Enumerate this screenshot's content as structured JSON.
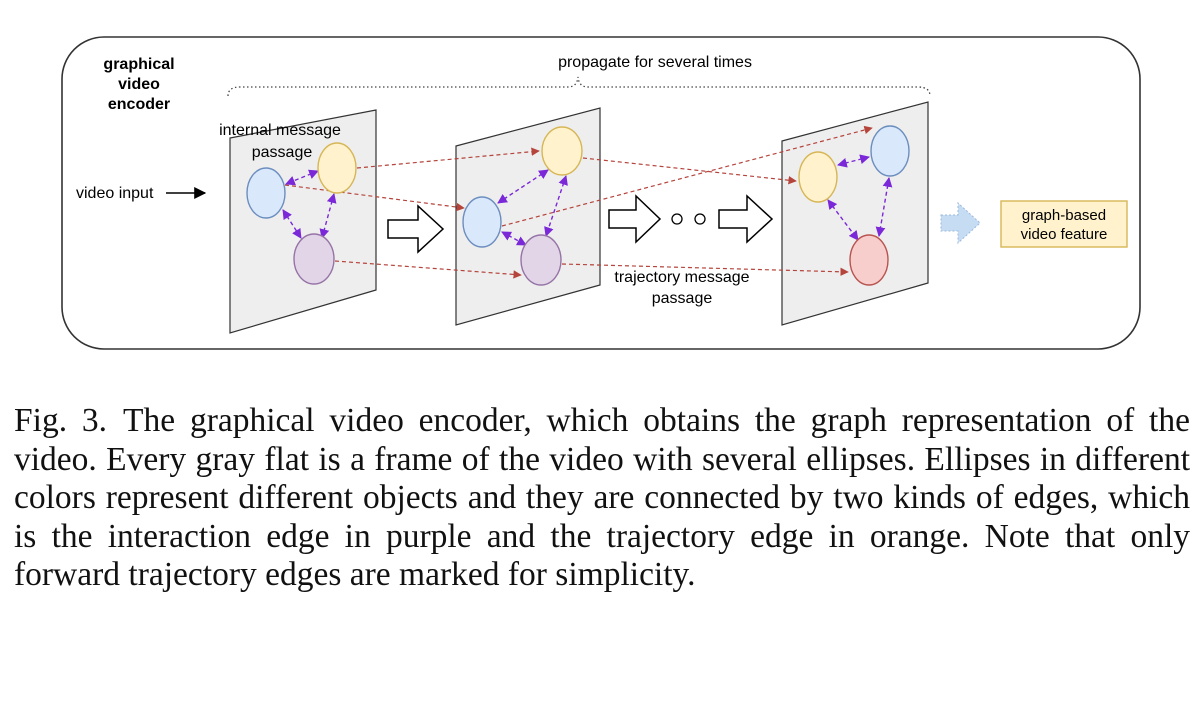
{
  "diagram": {
    "encoder_title": [
      "graphical",
      "video",
      "encoder"
    ],
    "propagate_label": "propagate for several times",
    "internal_label": [
      "internal message",
      "passage"
    ],
    "video_input_label": "video input",
    "trajectory_label": [
      "trajectory message",
      "passage"
    ],
    "output_label": [
      "graph-based",
      "video feature"
    ],
    "colors": {
      "frame_fill": "#eeeeee",
      "blue_node": "#dae8fc",
      "blue_stroke": "#6c8ebf",
      "yellow_node": "#fff2cc",
      "yellow_stroke": "#d6b656",
      "purple_node": "#e1d5e7",
      "purple_stroke": "#9673a6",
      "red_node": "#f8cecc",
      "red_stroke": "#b85450",
      "interaction_edge": "#7a28d8",
      "trajectory_edge": "#b5443c",
      "output_box_fill": "#fff2cc",
      "output_box_stroke": "#d6b656",
      "output_arrow": "#c6dcf3"
    }
  },
  "caption": {
    "figure_number": "Fig. 3.",
    "text": "The graphical video encoder, which obtains the graph representation of the video. Every gray flat is a frame of the video with several ellipses. Ellipses in different colors represent different objects and they are connected by two kinds of edges, which is the interaction edge in purple and the trajectory edge in orange. Note that only forward trajectory edges are marked for simplicity."
  }
}
